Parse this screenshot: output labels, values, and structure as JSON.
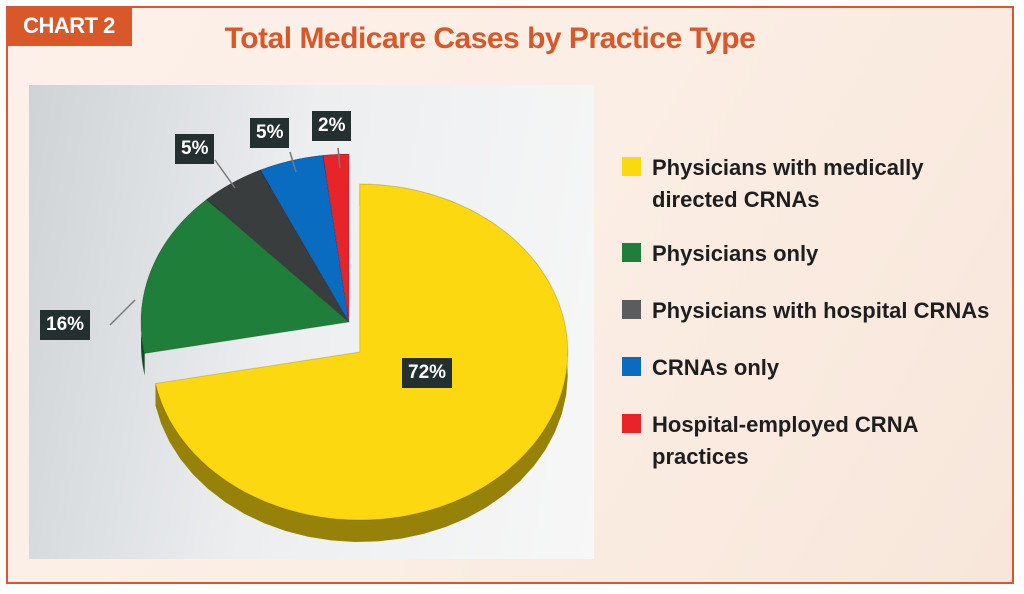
{
  "tag": "CHART 2",
  "chart_data": {
    "type": "pie",
    "title": "Total Medicare Cases by Practice Type",
    "categories": [
      "Physicians with medically directed CRNAs",
      "Physicians only",
      "Physicians with hospital CRNAs",
      "CRNAs only",
      "Hospital-employed CRNA practices"
    ],
    "values": [
      72,
      16,
      5,
      5,
      2
    ],
    "labels": [
      "72%",
      "16%",
      "5%",
      "5%",
      "2%"
    ],
    "colors": [
      "#fbd80f",
      "#1f7f3a",
      "#3a3d3d",
      "#0a6cc0",
      "#e8232a"
    ],
    "legend_position": "right",
    "style": "3d-exploded"
  }
}
